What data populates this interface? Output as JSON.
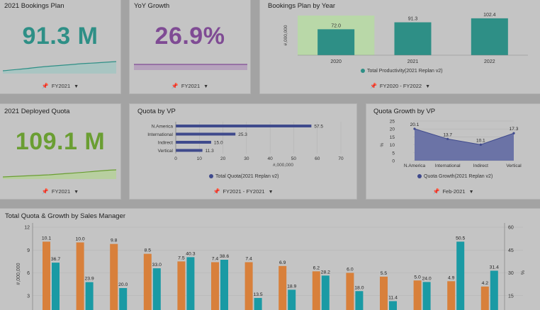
{
  "colors": {
    "teal": "#2e8f86",
    "purple": "#7f4b94",
    "green": "#6a9e32",
    "navy": "#3f4a8c",
    "orange": "#d8803b",
    "cyan": "#1a9aa4",
    "highlight": "#b9d8a8"
  },
  "kpis": [
    {
      "title": "2021 Bookings Plan",
      "value": "91.3 M",
      "filter": "FY2021"
    },
    {
      "title": "YoY Growth",
      "value": "26.9%",
      "filter": "FY2021"
    },
    {
      "title": "2021 Deployed Quota",
      "value": "109.1 M",
      "filter": "FY2021"
    }
  ],
  "bookings": {
    "title": "Bookings Plan by Year",
    "filter": "FY2020 - FY2022",
    "legend": "Total Productivity(2021 Replan v2)"
  },
  "quota_vp": {
    "title": "Quota by VP",
    "filter": "FY2021 - FY2021",
    "legend": "Total Quota(2021 Replan v2)"
  },
  "growth_vp": {
    "title": "Quota Growth by VP",
    "filter": "Feb-2021",
    "legend": "Quota Growth(2021 Replan v2)"
  },
  "manager": {
    "title": "Total Quota & Growth by Sales Manager"
  },
  "chart_data": [
    {
      "type": "bar",
      "title": "Bookings Plan by Year",
      "categories": [
        "2020",
        "2021",
        "2022"
      ],
      "values": [
        72.0,
        91.3,
        102.4
      ],
      "value_labels": [
        "72.0",
        "91.3",
        "102.4"
      ],
      "ylabel": "#,000,000",
      "highlighted_category": "2020",
      "ylim": [
        0,
        110
      ]
    },
    {
      "type": "bar",
      "orientation": "horizontal",
      "title": "Quota by VP",
      "categories": [
        "N.America",
        "International",
        "Indirect",
        "Vertical"
      ],
      "values": [
        57.5,
        25.3,
        15.0,
        11.3
      ],
      "value_labels": [
        "57.5",
        "25.3",
        "15.0",
        "11.3"
      ],
      "xlabel": "#,000,000",
      "xlim": [
        0,
        70
      ],
      "xticks": [
        "0",
        "10",
        "20",
        "30",
        "40",
        "50",
        "60",
        "70"
      ]
    },
    {
      "type": "area",
      "title": "Quota Growth by VP",
      "categories": [
        "N.America",
        "International",
        "Indirect",
        "Vertical"
      ],
      "values": [
        20.1,
        13.7,
        10.1,
        17.3
      ],
      "value_labels": [
        "20.1",
        "13.7",
        "10.1",
        "17.3"
      ],
      "ylabel": "%",
      "ylim": [
        0,
        25
      ],
      "yticks": [
        "0",
        "5",
        "10",
        "15",
        "20",
        "25"
      ]
    },
    {
      "type": "bar",
      "title": "Total Quota & Growth by Sales Manager",
      "ylabel": "#,000,000",
      "y2label": "%",
      "ylim": [
        1,
        12
      ],
      "y2lim": [
        5,
        60
      ],
      "yticks": [
        "3",
        "6",
        "9",
        "12"
      ],
      "y2ticks": [
        "15",
        "30",
        "45",
        "60"
      ],
      "series": [
        {
          "values": [
            10.1,
            10.0,
            9.8,
            8.5,
            7.5,
            7.4,
            7.4,
            6.9,
            6.2,
            6.0,
            5.5,
            5.0,
            4.9,
            4.2
          ],
          "labels": [
            "10.1",
            "10.0",
            "9.8",
            "8.5",
            "7.5",
            "7.4",
            "7.4",
            "6.9",
            "6.2",
            "6.0",
            "5.5",
            "5.0",
            "4.9",
            "4.2"
          ]
        },
        {
          "values": [
            36.7,
            23.9,
            20.0,
            33.0,
            40.3,
            38.6,
            13.5,
            18.9,
            28.2,
            18.0,
            11.4,
            24.0,
            50.5,
            31.4
          ],
          "labels": [
            "36.7",
            "23.9",
            "20.0",
            "33.0",
            "40.3",
            "38.6",
            "13.5",
            "18.9",
            "28.2",
            "18.0",
            "11.4",
            "24.0",
            "50.5",
            "31.4"
          ]
        }
      ]
    }
  ]
}
